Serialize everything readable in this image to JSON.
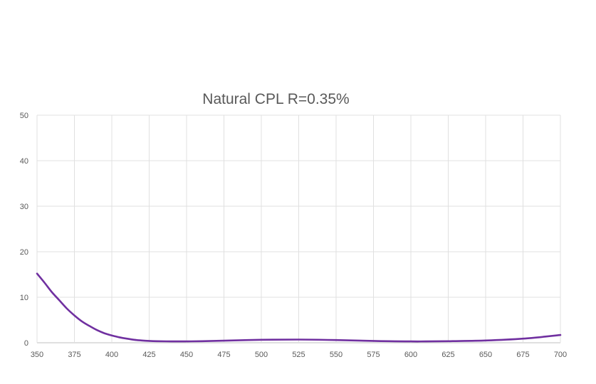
{
  "chart_data": {
    "type": "line",
    "title": "Natural CPL  R=0.35%",
    "xlabel": "",
    "ylabel": "",
    "xlim": [
      350,
      700
    ],
    "ylim": [
      0,
      50
    ],
    "x_ticks": [
      350,
      375,
      400,
      425,
      450,
      475,
      500,
      525,
      550,
      575,
      600,
      625,
      650,
      675,
      700
    ],
    "y_ticks": [
      0,
      10,
      20,
      30,
      40,
      50
    ],
    "grid": true,
    "legend": "none",
    "series": [
      {
        "color": "#7030a0",
        "x": [
          350,
          355,
          360,
          365,
          370,
          375,
          380,
          385,
          390,
          395,
          400,
          405,
          410,
          415,
          420,
          425,
          430,
          440,
          450,
          460,
          475,
          500,
          525,
          550,
          575,
          600,
          610,
          625,
          650,
          675,
          700
        ],
        "y": [
          15.2,
          13.2,
          11.1,
          9.3,
          7.5,
          6.0,
          4.7,
          3.7,
          2.8,
          2.1,
          1.6,
          1.2,
          0.9,
          0.65,
          0.5,
          0.4,
          0.35,
          0.3,
          0.3,
          0.35,
          0.45,
          0.65,
          0.7,
          0.6,
          0.4,
          0.3,
          0.3,
          0.35,
          0.5,
          0.9,
          1.7
        ]
      }
    ]
  }
}
